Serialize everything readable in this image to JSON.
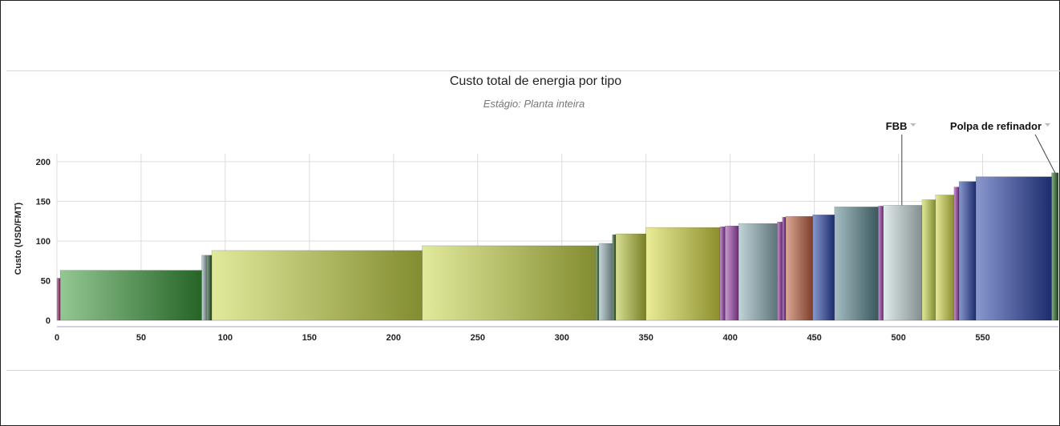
{
  "chart_data": {
    "type": "bar",
    "title": "Custo total de energia por tipo",
    "subtitle": "Estágio: Planta inteira",
    "xlabel": "",
    "ylabel": "Custo (USD/FMT)",
    "xlim": [
      0,
      595
    ],
    "ylim": [
      0,
      210
    ],
    "xticks": [
      0,
      50,
      100,
      150,
      200,
      250,
      300,
      350,
      400,
      450,
      500,
      550
    ],
    "yticks": [
      0,
      50,
      100,
      150,
      200
    ],
    "grid": true,
    "bars": [
      {
        "x0": 0,
        "x1": 2,
        "value": 53,
        "color": "#a0306a"
      },
      {
        "x0": 2,
        "x1": 86,
        "value": 63,
        "color": "#3a9a3a"
      },
      {
        "x0": 86,
        "x1": 89,
        "value": 82,
        "color": "#9bb7bd"
      },
      {
        "x0": 89,
        "x1": 92,
        "value": 82,
        "color": "#2a5a2a"
      },
      {
        "x0": 92,
        "x1": 217,
        "value": 88,
        "color": "#c9d84a"
      },
      {
        "x0": 217,
        "x1": 320,
        "value": 94,
        "color": "#c9d84a"
      },
      {
        "x0": 320,
        "x1": 322,
        "value": 94,
        "color": "#3a7a3a"
      },
      {
        "x0": 322,
        "x1": 330,
        "value": 97,
        "color": "#9bb7bd"
      },
      {
        "x0": 330,
        "x1": 332,
        "value": 108,
        "color": "#2a5a2a"
      },
      {
        "x0": 332,
        "x1": 350,
        "value": 109,
        "color": "#b8c43a"
      },
      {
        "x0": 350,
        "x1": 394,
        "value": 117,
        "color": "#d8dc44"
      },
      {
        "x0": 394,
        "x1": 397,
        "value": 118,
        "color": "#9a3aa8"
      },
      {
        "x0": 397,
        "x1": 405,
        "value": 119,
        "color": "#a04ab0"
      },
      {
        "x0": 405,
        "x1": 428,
        "value": 122,
        "color": "#8fb2b8"
      },
      {
        "x0": 428,
        "x1": 431,
        "value": 124,
        "color": "#9a3aa8"
      },
      {
        "x0": 431,
        "x1": 433,
        "value": 130,
        "color": "#7a2a9a"
      },
      {
        "x0": 433,
        "x1": 449,
        "value": 131,
        "color": "#c06040"
      },
      {
        "x0": 449,
        "x1": 462,
        "value": 133,
        "color": "#2a44a8"
      },
      {
        "x0": 462,
        "x1": 488,
        "value": 143,
        "color": "#5a8890"
      },
      {
        "x0": 488,
        "x1": 491,
        "value": 144,
        "color": "#9a3aa8"
      },
      {
        "x0": 491,
        "x1": 514,
        "value": 145,
        "color": "#c8dadd"
      },
      {
        "x0": 514,
        "x1": 522,
        "value": 152,
        "color": "#c9d84a"
      },
      {
        "x0": 522,
        "x1": 533,
        "value": 158,
        "color": "#d2d846"
      },
      {
        "x0": 533,
        "x1": 536,
        "value": 168,
        "color": "#9a3aa8"
      },
      {
        "x0": 536,
        "x1": 546,
        "value": 175,
        "color": "#2a44a8"
      },
      {
        "x0": 546,
        "x1": 591,
        "value": 181,
        "color": "#2a44a8"
      },
      {
        "x0": 591,
        "x1": 595,
        "value": 186,
        "color": "#2a6a2a"
      }
    ],
    "annotations": [
      {
        "label": "FBB",
        "target_x": 502,
        "target_value": 145
      },
      {
        "label": "Polpa de refinador",
        "target_x": 593,
        "target_value": 186
      }
    ]
  }
}
